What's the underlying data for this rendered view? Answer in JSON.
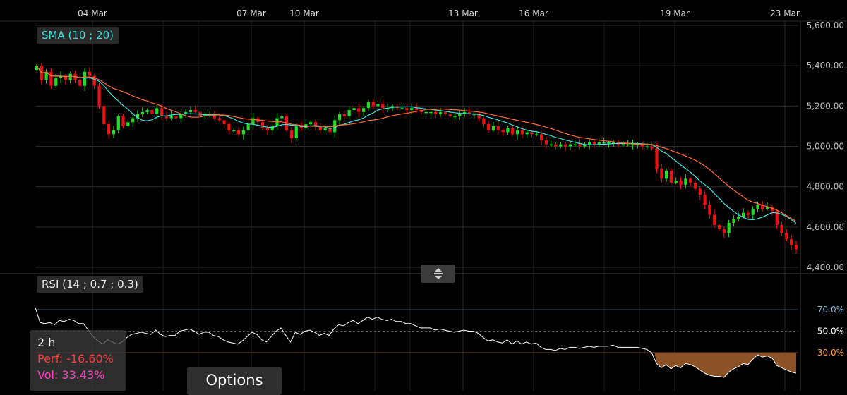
{
  "chart_data": [
    {
      "type": "candlestick",
      "title": "",
      "x_ticks": [
        "04 Mar",
        "07 Mar",
        "10 Mar",
        "13 Mar",
        "16 Mar",
        "19 Mar",
        "23 Mar"
      ],
      "y_ticks": [
        "5,600.00",
        "5,400.00",
        "5,200.00",
        "5,000.00",
        "4,800.00",
        "4,600.00",
        "4,400.00"
      ],
      "ylim": [
        4400,
        5600
      ],
      "grid": true,
      "interval": "2 h",
      "closes": [
        5400,
        5330,
        5370,
        5300,
        5340,
        5350,
        5330,
        5360,
        5330,
        5300,
        5370,
        5350,
        5300,
        5200,
        5110,
        5060,
        5080,
        5150,
        5100,
        5120,
        5140,
        5160,
        5170,
        5180,
        5160,
        5190,
        5150,
        5140,
        5150,
        5140,
        5160,
        5170,
        5180,
        5170,
        5150,
        5160,
        5160,
        5140,
        5130,
        5110,
        5080,
        5080,
        5060,
        5080,
        5110,
        5140,
        5120,
        5090,
        5080,
        5100,
        5140,
        5150,
        5080,
        5040,
        5100,
        5090,
        5110,
        5120,
        5100,
        5080,
        5090,
        5070,
        5130,
        5160,
        5150,
        5180,
        5190,
        5170,
        5190,
        5220,
        5200,
        5210,
        5190,
        5190,
        5200,
        5190,
        5190,
        5180,
        5190,
        5180,
        5170,
        5170,
        5170,
        5160,
        5170,
        5160,
        5150,
        5150,
        5160,
        5170,
        5160,
        5160,
        5140,
        5110,
        5080,
        5100,
        5080,
        5070,
        5090,
        5060,
        5080,
        5060,
        5070,
        5060,
        5060,
        5030,
        5010,
        5010,
        5000,
        5010,
        5000,
        5010,
        5010,
        5000,
        5010,
        5020,
        5010,
        5020,
        5020,
        5020,
        5020,
        5010,
        5010,
        5010,
        5010,
        5010,
        5000,
        5000,
        4990,
        4890,
        4840,
        4880,
        4820,
        4830,
        4810,
        4840,
        4820,
        4790,
        4760,
        4710,
        4660,
        4610,
        4590,
        4570,
        4620,
        4640,
        4650,
        4670,
        4660,
        4690,
        4710,
        4690,
        4700,
        4680,
        4610,
        4570,
        4540,
        4510,
        4490
      ],
      "sma_periods": [
        10,
        20
      ],
      "sma_colors": [
        "#3ee0de",
        "#ff6b2e"
      ]
    },
    {
      "type": "line",
      "title": "",
      "indicator": "RSI",
      "levels": [
        "70.0%",
        "50.0%",
        "30.0%"
      ],
      "ylim": [
        0,
        100
      ],
      "values": [
        72,
        58,
        57,
        58,
        56,
        60,
        59,
        61,
        60,
        57,
        57,
        51,
        45,
        41,
        38,
        42,
        40,
        38,
        40,
        44,
        47,
        48,
        49,
        48,
        47,
        51,
        47,
        45,
        46,
        46,
        50,
        51,
        52,
        50,
        47,
        49,
        49,
        46,
        45,
        42,
        40,
        39,
        38,
        41,
        45,
        49,
        47,
        42,
        40,
        45,
        50,
        53,
        46,
        40,
        49,
        47,
        50,
        51,
        49,
        46,
        48,
        46,
        52,
        56,
        55,
        58,
        60,
        57,
        60,
        63,
        61,
        63,
        61,
        60,
        61,
        59,
        59,
        57,
        57,
        55,
        53,
        53,
        53,
        51,
        52,
        51,
        50,
        49,
        50,
        51,
        50,
        50,
        48,
        44,
        41,
        42,
        40,
        39,
        42,
        38,
        41,
        38,
        40,
        38,
        39,
        35,
        33,
        33,
        32,
        34,
        33,
        35,
        35,
        34,
        35,
        36,
        35,
        36,
        36,
        36,
        37,
        35,
        35,
        35,
        35,
        35,
        34,
        33,
        30,
        20,
        16,
        19,
        15,
        18,
        16,
        20,
        19,
        17,
        14,
        11,
        9,
        8,
        8,
        7,
        12,
        15,
        17,
        20,
        19,
        24,
        28,
        26,
        27,
        25,
        18,
        16,
        14,
        12,
        11
      ],
      "oversold_fill_color": "#8a5226"
    }
  ],
  "sma_legend": {
    "label": "SMA (10 ; 20)"
  },
  "rsi_legend": {
    "label": "RSI (14 ; 0.7 ; 0.3)"
  },
  "info": {
    "interval": "2 h",
    "perf": "Perf: -16.60%",
    "vol": "Vol: 33.43%"
  },
  "options_button": {
    "label": "Options"
  },
  "colors": {
    "up": "#22dd22",
    "down": "#ee1111",
    "sma_fast": "#3ee0de",
    "sma_slow": "#ff6b2e",
    "rsi_line": "#ffffff"
  }
}
